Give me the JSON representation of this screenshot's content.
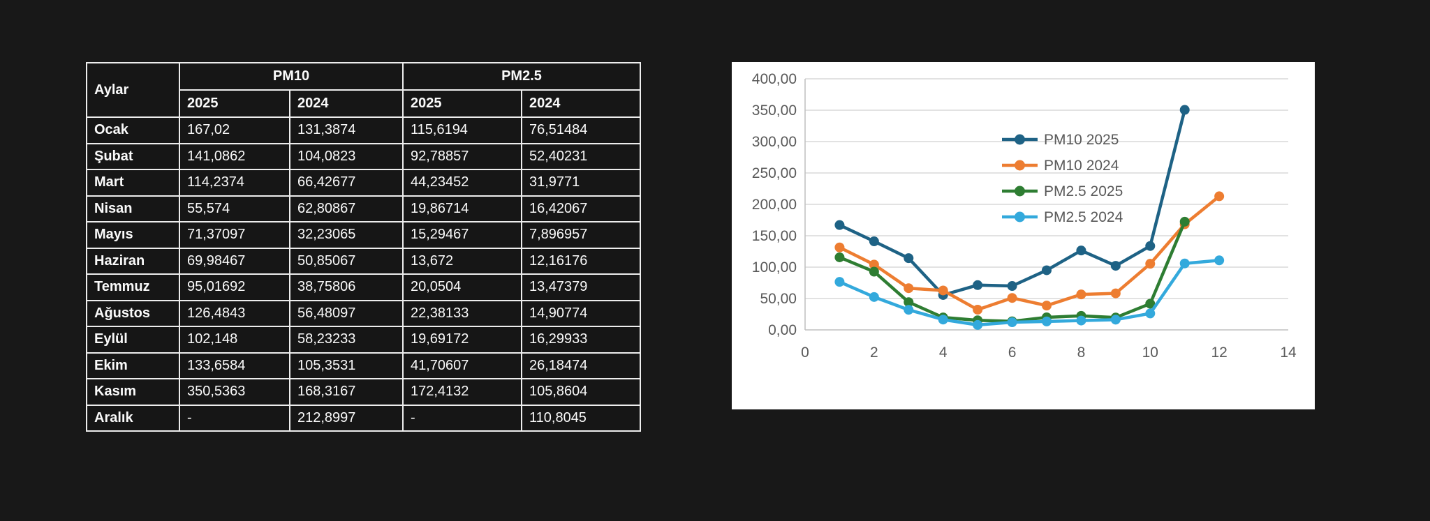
{
  "page": {
    "background": "#181818"
  },
  "table": {
    "corner_header": "Aylar",
    "group_headers": [
      "PM10",
      "PM2.5"
    ],
    "year_headers": [
      "2025",
      "2024",
      "2025",
      "2024"
    ],
    "text_color": "#fafafa",
    "border_color": "#ededed",
    "rows": [
      {
        "month": "Ocak",
        "values": [
          "167,02",
          "131,3874",
          "115,6194",
          "76,51484"
        ]
      },
      {
        "month": "Şubat",
        "values": [
          "141,0862",
          "104,0823",
          "92,78857",
          "52,40231"
        ]
      },
      {
        "month": "Mart",
        "values": [
          "114,2374",
          "66,42677",
          "44,23452",
          "31,9771"
        ]
      },
      {
        "month": "Nisan",
        "values": [
          "55,574",
          "62,80867",
          "19,86714",
          "16,42067"
        ]
      },
      {
        "month": "Mayıs",
        "values": [
          "71,37097",
          "32,23065",
          "15,29467",
          "7,896957"
        ]
      },
      {
        "month": "Haziran",
        "values": [
          "69,98467",
          "50,85067",
          "13,672",
          "12,16176"
        ]
      },
      {
        "month": "Temmuz",
        "values": [
          "95,01692",
          "38,75806",
          "20,0504",
          "13,47379"
        ]
      },
      {
        "month": "Ağustos",
        "values": [
          "126,4843",
          "56,48097",
          "22,38133",
          "14,90774"
        ]
      },
      {
        "month": "Eylül",
        "values": [
          "102,148",
          "58,23233",
          "19,69172",
          "16,29933"
        ]
      },
      {
        "month": "Ekim",
        "values": [
          "133,6584",
          "105,3531",
          "41,70607",
          "26,18474"
        ]
      },
      {
        "month": "Kasım",
        "values": [
          "350,5363",
          "168,3167",
          "172,4132",
          "105,8604"
        ]
      },
      {
        "month": "Aralık",
        "values": [
          "-",
          "212,8997",
          "-",
          "110,8045"
        ]
      }
    ]
  },
  "chart_data": {
    "type": "line",
    "title": "",
    "xlabel": "",
    "ylabel": "",
    "xlim": [
      0,
      14
    ],
    "ylim": [
      0,
      400
    ],
    "x_ticks": [
      0,
      2,
      4,
      6,
      8,
      10,
      12,
      14
    ],
    "y_ticks": [
      {
        "value": 0,
        "label": "0,00"
      },
      {
        "value": 50,
        "label": "50,00"
      },
      {
        "value": 100,
        "label": "100,00"
      },
      {
        "value": 150,
        "label": "150,00"
      },
      {
        "value": 200,
        "label": "200,00"
      },
      {
        "value": 250,
        "label": "250,00"
      },
      {
        "value": 300,
        "label": "300,00"
      },
      {
        "value": 350,
        "label": "350,00"
      },
      {
        "value": 400,
        "label": "400,00"
      }
    ],
    "grid": true,
    "gridline_color": "#d9d9d9",
    "axis_line_color": "#bfbfbf",
    "axis_text_color": "#595959",
    "plot_background": "#ffffff",
    "legend_position": "inside-upper-middle",
    "series": [
      {
        "name": "PM10 2025",
        "color": "#1e6285",
        "x": [
          1,
          2,
          3,
          4,
          5,
          6,
          7,
          8,
          9,
          10,
          11
        ],
        "values": [
          167.02,
          141.0862,
          114.2374,
          55.574,
          71.37097,
          69.98467,
          95.01692,
          126.4843,
          102.148,
          133.6584,
          350.5363
        ]
      },
      {
        "name": "PM10 2024",
        "color": "#ed7d31",
        "x": [
          1,
          2,
          3,
          4,
          5,
          6,
          7,
          8,
          9,
          10,
          11,
          12
        ],
        "values": [
          131.3874,
          104.0823,
          66.42677,
          62.80867,
          32.23065,
          50.85067,
          38.75806,
          56.48097,
          58.23233,
          105.3531,
          168.3167,
          212.8997
        ]
      },
      {
        "name": "PM2.5 2025",
        "color": "#2e7d32",
        "x": [
          1,
          2,
          3,
          4,
          5,
          6,
          7,
          8,
          9,
          10,
          11
        ],
        "values": [
          115.6194,
          92.78857,
          44.23452,
          19.86714,
          15.29467,
          13.672,
          20.0504,
          22.38133,
          19.69172,
          41.70607,
          172.4132
        ]
      },
      {
        "name": "PM2.5 2024",
        "color": "#33a9dc",
        "x": [
          1,
          2,
          3,
          4,
          5,
          6,
          7,
          8,
          9,
          10,
          11,
          12
        ],
        "values": [
          76.51484,
          52.40231,
          31.9771,
          16.42067,
          7.896957,
          12.16176,
          13.47379,
          14.90774,
          16.29933,
          26.18474,
          105.8604,
          110.8045
        ]
      }
    ]
  }
}
